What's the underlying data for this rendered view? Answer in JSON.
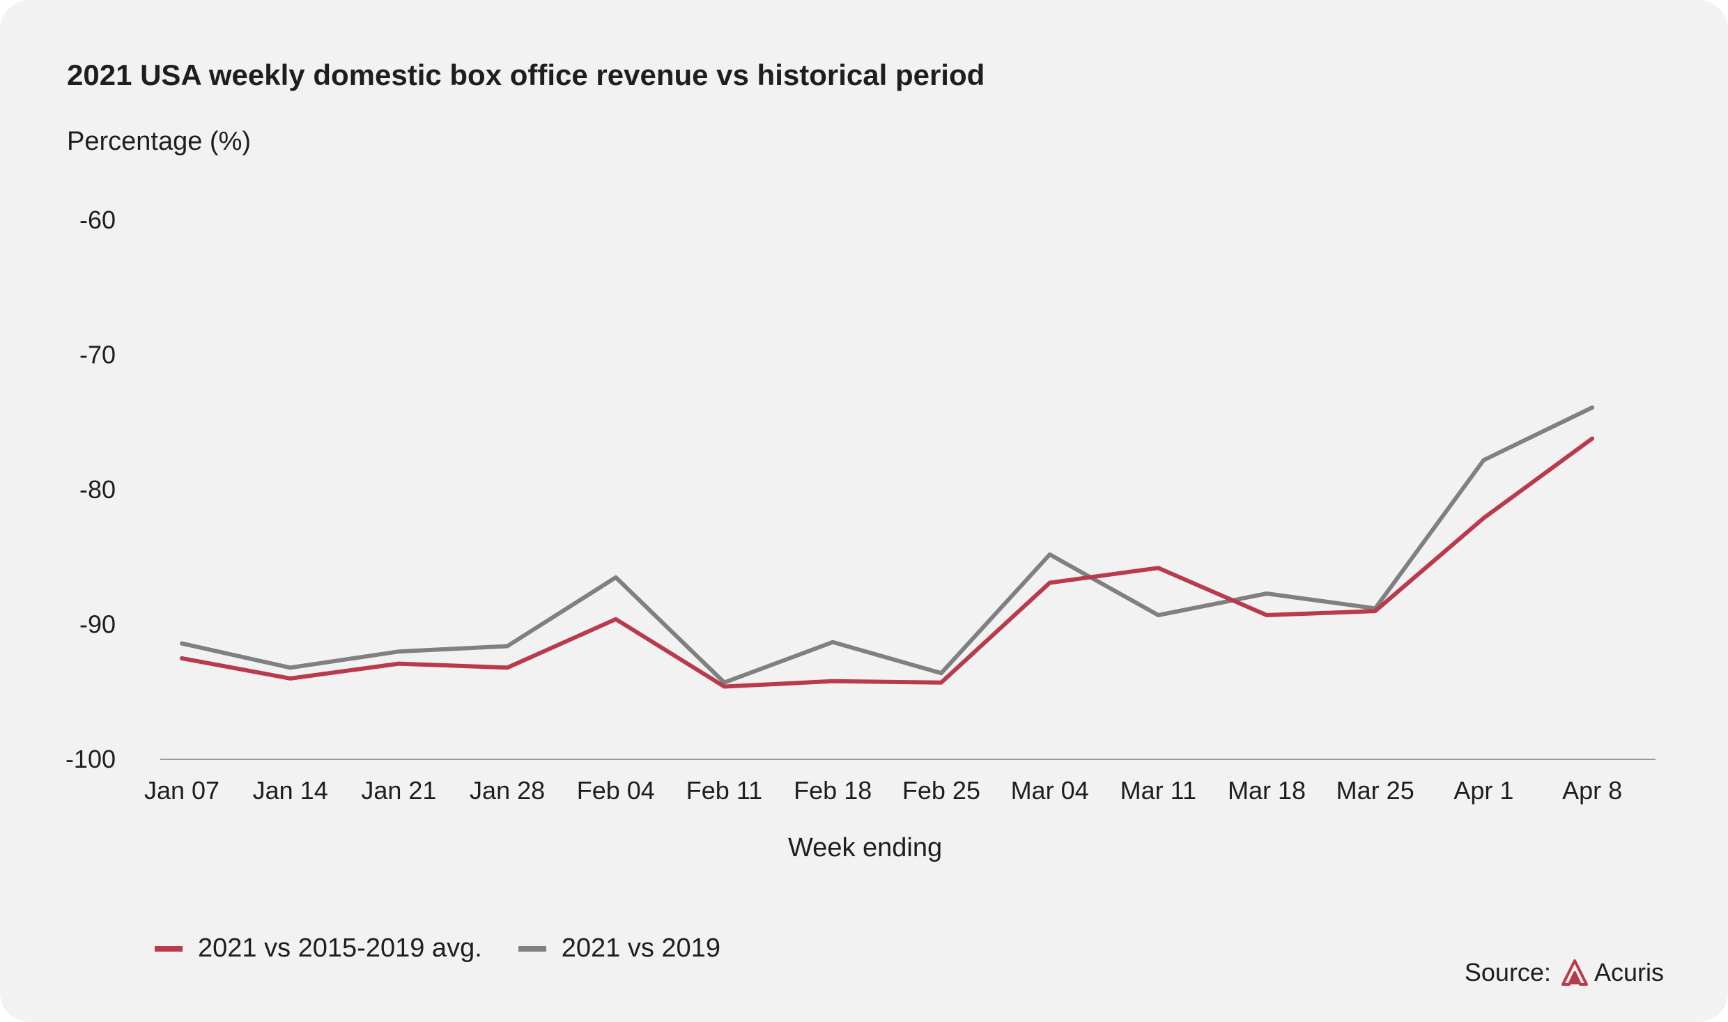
{
  "title": "2021 USA weekly domestic box office revenue vs historical period",
  "colors": {
    "background": "#f2f2f2",
    "series_avg": "#b93a4c",
    "series_2019": "#808080",
    "axis": "#9a9a9a",
    "text": "#1e1e1e"
  },
  "source": {
    "label": "Source:",
    "brand": "Acuris",
    "logo_icon": "acuris-logo-icon"
  },
  "chart_data": {
    "type": "line",
    "title": "2021 USA weekly domestic box office revenue vs historical period",
    "ylabel": "Percentage (%)",
    "xlabel": "Week ending",
    "categories": [
      "Jan 07",
      "Jan 14",
      "Jan 21",
      "Jan 28",
      "Feb 04",
      "Feb 11",
      "Feb 18",
      "Feb 25",
      "Mar 04",
      "Mar 11",
      "Mar 18",
      "Mar 25",
      "Apr 1",
      "Apr 8"
    ],
    "ylim": [
      -100,
      -60
    ],
    "yticks": [
      -60,
      -70,
      -80,
      -90,
      -100
    ],
    "grid": false,
    "legend_position": "bottom-left",
    "series": [
      {
        "name": "2021 vs 2015-2019 avg.",
        "color": "#b93a4c",
        "values": [
          -92.5,
          -94.0,
          -92.9,
          -93.2,
          -89.6,
          -94.6,
          -94.2,
          -94.3,
          -86.9,
          -85.8,
          -89.3,
          -89.0,
          -82.1,
          -76.2
        ]
      },
      {
        "name": "2021 vs 2019",
        "color": "#808080",
        "values": [
          -91.4,
          -93.2,
          -92.0,
          -91.6,
          -86.5,
          -94.3,
          -91.3,
          -93.6,
          -84.8,
          -89.3,
          -87.7,
          -88.8,
          -77.8,
          -73.9
        ]
      }
    ]
  }
}
